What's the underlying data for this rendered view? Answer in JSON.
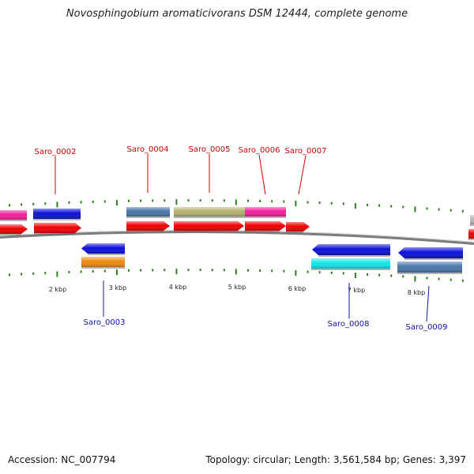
{
  "title": "Novosphingobium aromaticivorans DSM 12444, complete genome",
  "footer": {
    "accession": "Accession: NC_007794",
    "topology": "Topology: circular; Length: 3,561,584 bp; Genes: 3,397"
  },
  "colors": {
    "backbone": "#7c7c7c",
    "tick": "#2a7f1c",
    "label_top": "#cc0000",
    "label_bottom": "#1010a8",
    "red": "#ee0000",
    "blue": "#0b10d8",
    "pink": "#f0209a",
    "steel": "#4a76a8",
    "olive": "#b4b070",
    "orange": "#f08a10",
    "cyan": "#10e6ea",
    "grey": "#b8b8b8"
  },
  "scale": {
    "unit": "kbp",
    "labels": [
      "2 kbp",
      "3 kbp",
      "4 kbp",
      "5 kbp",
      "6 kbp",
      "7 kbp",
      "8 kbp"
    ]
  },
  "genes": [
    {
      "locus": "Saro_0002",
      "strand": "top"
    },
    {
      "locus": "Saro_0003",
      "strand": "bottom"
    },
    {
      "locus": "Saro_0004",
      "strand": "top"
    },
    {
      "locus": "Saro_0005",
      "strand": "top"
    },
    {
      "locus": "Saro_0006",
      "strand": "top"
    },
    {
      "locus": "Saro_0007",
      "strand": "top"
    },
    {
      "locus": "Saro_0008",
      "strand": "bottom"
    },
    {
      "locus": "Saro_0009",
      "strand": "bottom"
    }
  ]
}
